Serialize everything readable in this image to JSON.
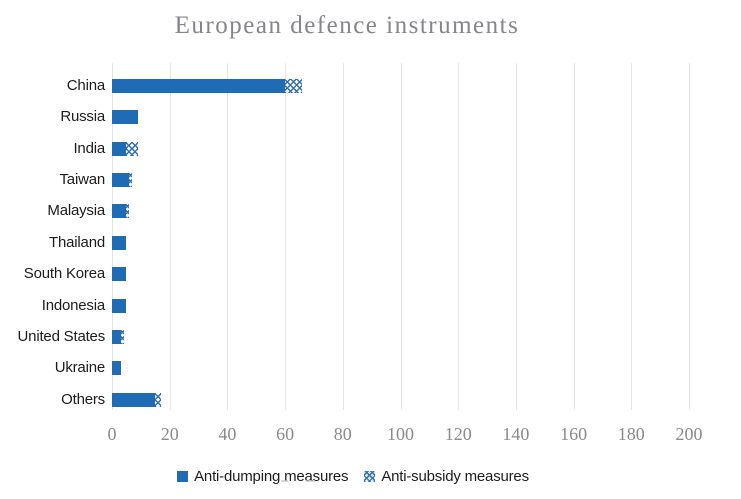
{
  "title": "European defence instruments",
  "colors": {
    "bar_solid": "#1f6cb4",
    "pattern_stroke": "#2f6eb0",
    "gridline": "#e4e4e4",
    "title_text": "#85858a",
    "axis_text": "#8a8a8a",
    "label_text": "#1c1c1c"
  },
  "axis": {
    "ticks": [
      "0",
      "20",
      "40",
      "60",
      "80",
      "100",
      "120",
      "140",
      "160",
      "180",
      "200"
    ],
    "max": 200
  },
  "legend": [
    {
      "label": "Anti-dumping measures",
      "swatch": "solid-square-icon"
    },
    {
      "label": "Anti-subsidy measures",
      "swatch": "pattern-square-icon"
    }
  ],
  "chart_data": {
    "type": "bar",
    "orientation": "horizontal",
    "title": "European defence instruments",
    "categories": [
      "China",
      "Russia",
      "India",
      "Taiwan",
      "Malaysia",
      "Thailand",
      "South Korea",
      "Indonesia",
      "United States",
      "Ukraine",
      "Others"
    ],
    "series": [
      {
        "name": "Anti-dumping measures",
        "values": [
          60,
          9,
          5,
          6,
          5,
          5,
          5,
          5,
          3,
          3,
          15
        ]
      },
      {
        "name": "Anti-subsidy measures",
        "values": [
          6,
          0,
          4,
          1,
          1,
          0,
          0,
          0,
          1,
          0,
          2
        ]
      }
    ],
    "xlabel": "",
    "ylabel": "",
    "xlim": [
      0,
      200
    ],
    "grid": "vertical",
    "legend_position": "bottom"
  }
}
